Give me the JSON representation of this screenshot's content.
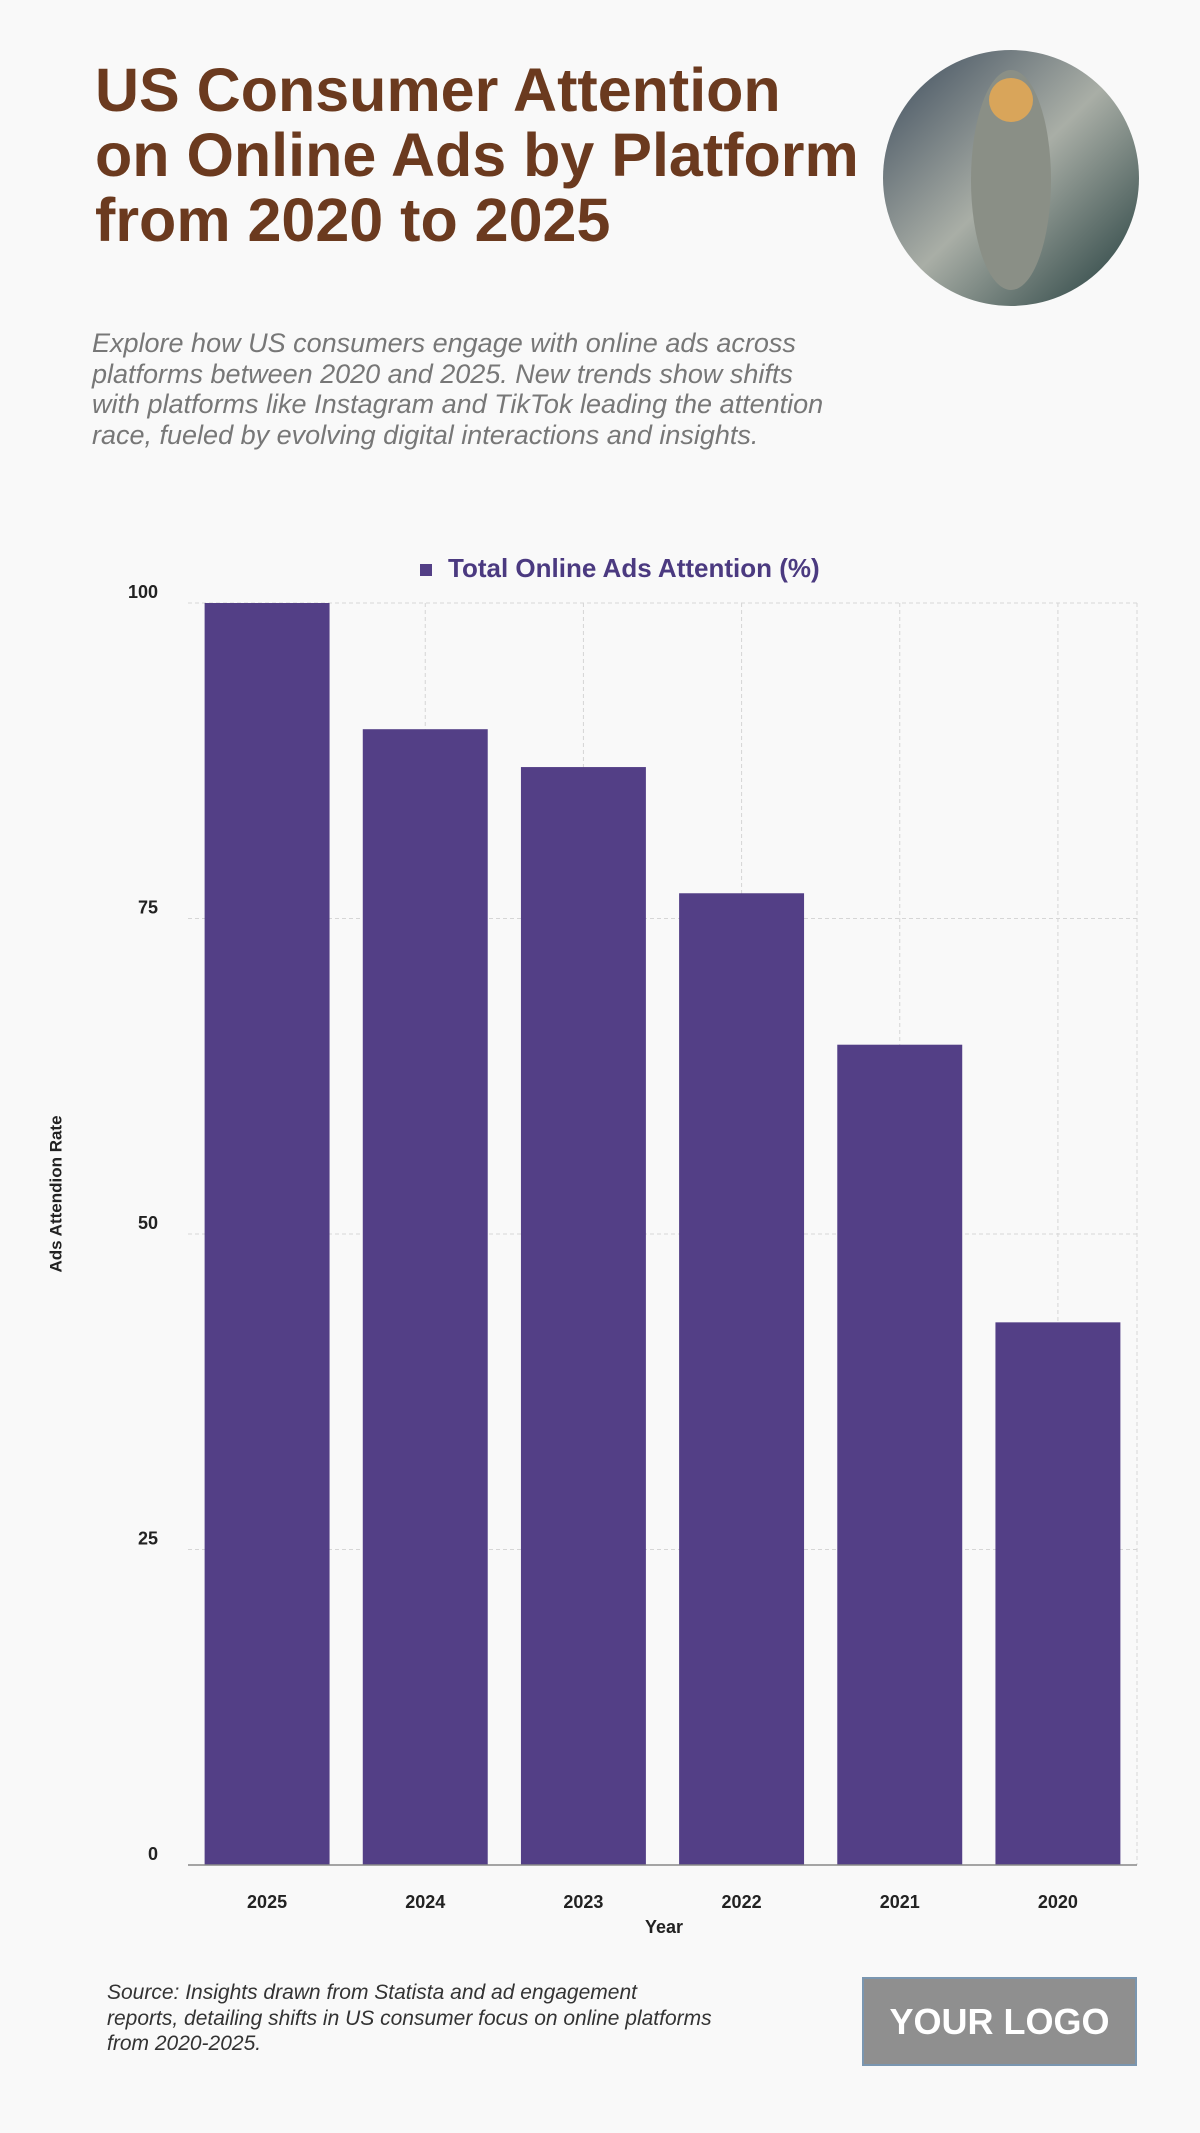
{
  "header": {
    "title": "US Consumer Attention\non Online Ads by Platform\nfrom 2020 to 2025",
    "subtitle": "Explore how US consumers engage with online ads across\nplatforms between 2020 and 2025. New trends show shifts\nwith platforms like Instagram and TikTok leading the attention\nrace, fueled by evolving digital interactions and insights."
  },
  "chart_data": {
    "type": "bar",
    "categories": [
      "2025",
      "2024",
      "2023",
      "2022",
      "2021",
      "2020"
    ],
    "series": [
      {
        "name": "Total Online Ads Attention (%)",
        "color": "#533f86",
        "values": [
          100,
          90,
          87,
          77,
          65,
          43
        ]
      }
    ],
    "ylim": [
      0,
      100
    ],
    "yticks": [
      0,
      25,
      50,
      75,
      100
    ],
    "grid": true,
    "x_label": "Year",
    "y_label": "Ads Attendion Rate",
    "legend": "top"
  },
  "footer": {
    "source": "Source: Insights drawn from Statista and ad engagement\nreports, detailing shifts in US consumer focus on online platforms\nfrom 2020-2025.",
    "logo": "YOUR LOGO"
  }
}
